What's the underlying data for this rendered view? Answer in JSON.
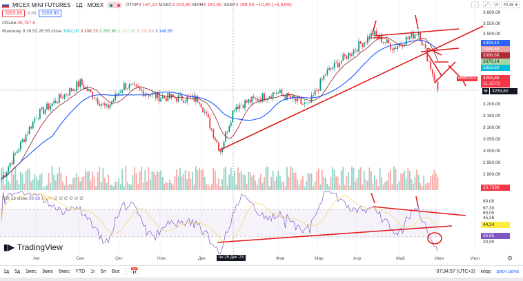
{
  "header": {
    "symbol": "MICEX MINI FUTURES · 1Д · MOEX",
    "open_label": "ОТКР",
    "open": "3 197,10",
    "high_label": "МАКС",
    "high": "3 204,80",
    "low_label": "МИН",
    "low": "3 181,90",
    "close_label": "ЗАКР",
    "close": "3 188,55",
    "change": "−10,85 (−0,34%)",
    "bid": "3263.85",
    "spread": "0.00",
    "ask": "3263.85",
    "currency": "RUB"
  },
  "legend": {
    "volume_label": "Объём",
    "volume": "35,757 K",
    "ichimoku_label": "Ишимоку 9 26 52 26 55 close",
    "ichimoku_values": [
      "3092,00",
      "3 108,73",
      "3 287,90",
      "3 217,68",
      "3 161,68",
      "3 149,95"
    ],
    "rsi_label": "RSI 13 close",
    "rsi_value": "59,38",
    "rsi_ma": "38,44",
    "rsi_extra": "∅ ∅ ∅ ∅ ∅ ∅"
  },
  "price_axis": [
    "3 600,00",
    "3 550,00",
    "3 500,00",
    "3 200,00",
    "3 150,00",
    "3 100,00",
    "3 050,00",
    "3 000,00",
    "2 950,00",
    "2 900,00"
  ],
  "price_tags": [
    {
      "v": "3393,42",
      "c": "#2962ff"
    },
    {
      "v": "3388,68",
      "c": "#e8a0a0"
    },
    {
      "v": "3388,68",
      "c": "#b22833"
    },
    {
      "v": "3376,14",
      "c": "#a5d6a7"
    },
    {
      "v": "3363,60",
      "c": "#00bcd4"
    }
  ],
  "last_price": {
    "symbol": "MMM2024",
    "value": "3263,85",
    "countdown": "11:15:01"
  },
  "crosshair_price": "3259,80",
  "volume_tag": "23,733K",
  "rsi_axis": [
    "80,00",
    "67,30",
    "60,00",
    "45,26",
    "25,95",
    "20,00"
  ],
  "rsi_tag": "44,24",
  "rsi_low_tag": "25,95",
  "time_axis": [
    "Авг",
    "Сен",
    "Окт",
    "Ноя",
    "Дек",
    "Фев",
    "Мар",
    "Апр",
    "Май",
    "Июн",
    "Июл"
  ],
  "crosshair_date": "пн 25 Дек '23",
  "logo": "TradingView",
  "ranges": [
    "1д",
    "5д",
    "1мес",
    "3мес",
    "6мес",
    "YTD",
    "1г",
    "5л",
    "Все"
  ],
  "status": {
    "time": "07:34:57 (UTC+3)",
    "adj": "корр",
    "calc": "расч.цена"
  },
  "chart_data": {
    "type": "candlestick",
    "keypoints": [
      [
        0,
        2880
      ],
      [
        20,
        3150
      ],
      [
        45,
        3290
      ],
      [
        60,
        3180
      ],
      [
        70,
        3280
      ],
      [
        90,
        3230
      ],
      [
        113,
        3220
      ],
      [
        125,
        3000
      ],
      [
        133,
        3190
      ],
      [
        157,
        3250
      ],
      [
        175,
        3190
      ],
      [
        185,
        3330
      ],
      [
        212,
        3500
      ],
      [
        224,
        3440
      ],
      [
        238,
        3510
      ],
      [
        244,
        3380
      ],
      [
        249,
        3262
      ]
    ],
    "ylim": [
      2850,
      3600
    ]
  }
}
